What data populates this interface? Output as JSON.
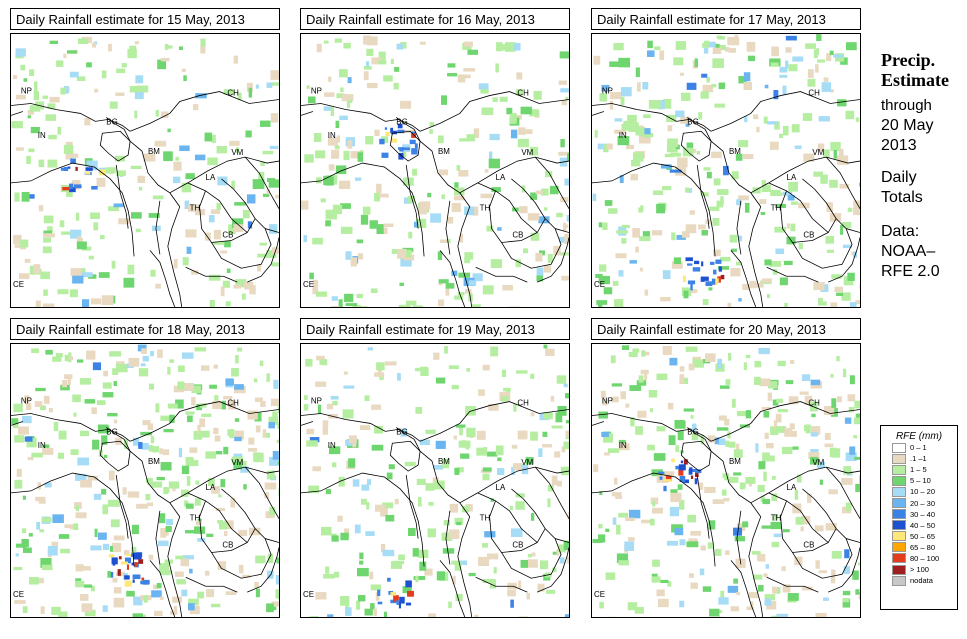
{
  "panels": [
    {
      "title": "Daily Rainfall estimate for  15 May, 2013"
    },
    {
      "title": "Daily Rainfall estimate for  16 May, 2013"
    },
    {
      "title": "Daily Rainfall estimate for  17 May, 2013"
    },
    {
      "title": "Daily Rainfall estimate for  18 May, 2013"
    },
    {
      "title": "Daily Rainfall estimate for  19 May, 2013"
    },
    {
      "title": "Daily Rainfall estimate for  20 May, 2013"
    }
  ],
  "country_labels": [
    "NP",
    "CH",
    "IN",
    "BG",
    "BM",
    "VM",
    "LA",
    "TH",
    "CB",
    "CE"
  ],
  "side": {
    "line1": "Precip.",
    "line2": "Estimate",
    "line3": "through",
    "line4": "20 May",
    "line5": "2013",
    "line6": "Daily",
    "line7": "Totals",
    "line8": "Data:",
    "line9": "NOAA–",
    "line10": "RFE 2.0"
  },
  "legend": {
    "title": "RFE (mm)",
    "items": [
      {
        "label": "0 – 1",
        "color": "#ffffff"
      },
      {
        "label": ".1 –1",
        "color": "#e8d9c0"
      },
      {
        "label": "1 – 5",
        "color": "#b5eea0"
      },
      {
        "label": "5 – 10",
        "color": "#6fd66f"
      },
      {
        "label": "10 – 20",
        "color": "#a6dcf5"
      },
      {
        "label": "20 – 30",
        "color": "#6ab4f0"
      },
      {
        "label": "30 – 40",
        "color": "#3c82e6"
      },
      {
        "label": "40 – 50",
        "color": "#1e50d2"
      },
      {
        "label": "50 – 65",
        "color": "#ffe878"
      },
      {
        "label": "65 – 80",
        "color": "#ffa500"
      },
      {
        "label": "80 – 100",
        "color": "#e63c1e"
      },
      {
        "label": "> 100",
        "color": "#a01e1e"
      },
      {
        "label": "nodata",
        "color": "#c8c8c8"
      }
    ]
  },
  "rain_intensity": [
    {
      "wet": 0.55,
      "heavy": 0.35
    },
    {
      "wet": 0.6,
      "heavy": 0.45
    },
    {
      "wet": 0.7,
      "heavy": 0.5
    },
    {
      "wet": 0.85,
      "heavy": 0.6
    },
    {
      "wet": 0.6,
      "heavy": 0.35
    },
    {
      "wet": 0.75,
      "heavy": 0.5
    }
  ]
}
